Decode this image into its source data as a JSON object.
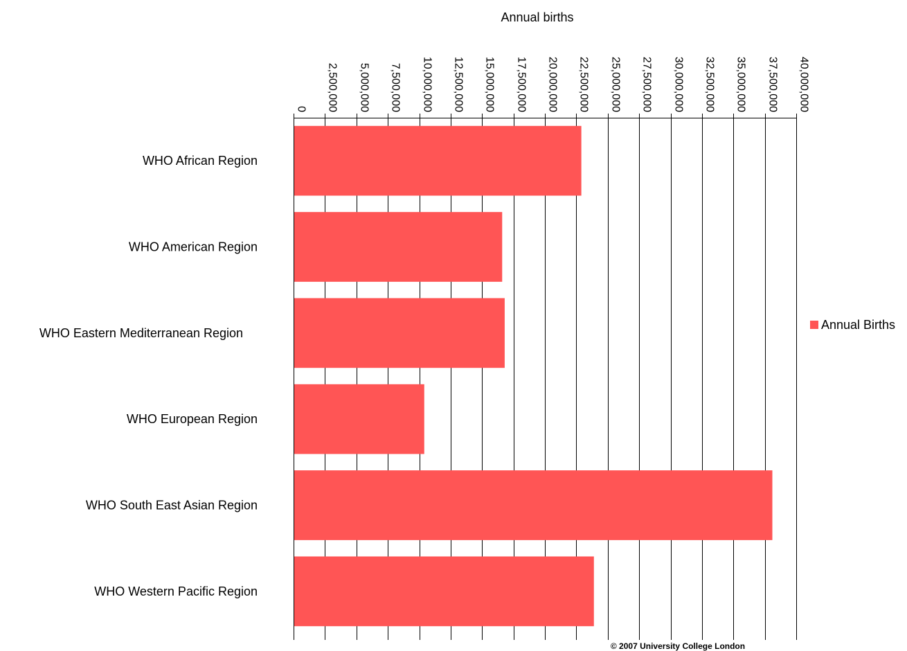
{
  "chart_data": {
    "type": "bar",
    "orientation": "horizontal",
    "title": "",
    "xlabel": "Annual births",
    "ylabel": "",
    "xlim": [
      0,
      40000000
    ],
    "x_tick_step": 2500000,
    "x_tick_labels": [
      "0",
      "2,500,000",
      "5,000,000",
      "7,500,000",
      "10,000,000",
      "12,500,000",
      "15,000,000",
      "17,500,000",
      "20,000,000",
      "22,500,000",
      "25,000,000",
      "27,500,000",
      "30,000,000",
      "32,500,000",
      "35,000,000",
      "37,500,000",
      "40,000,000"
    ],
    "x_axis_position": "top",
    "grid": true,
    "categories": [
      "WHO African Region",
      "WHO American Region",
      "WHO Eastern Mediterranean Region",
      "WHO European Region",
      "WHO South East Asian Region",
      "WHO Western Pacific Region"
    ],
    "series": [
      {
        "name": "Annual Births",
        "color": "#ff5555",
        "values": [
          22900000,
          16600000,
          16800000,
          10400000,
          38100000,
          23900000
        ]
      }
    ],
    "legend": {
      "position": "right",
      "entries": [
        "Annual Births"
      ]
    }
  },
  "footer": {
    "copyright": "© 2007 University College London"
  }
}
